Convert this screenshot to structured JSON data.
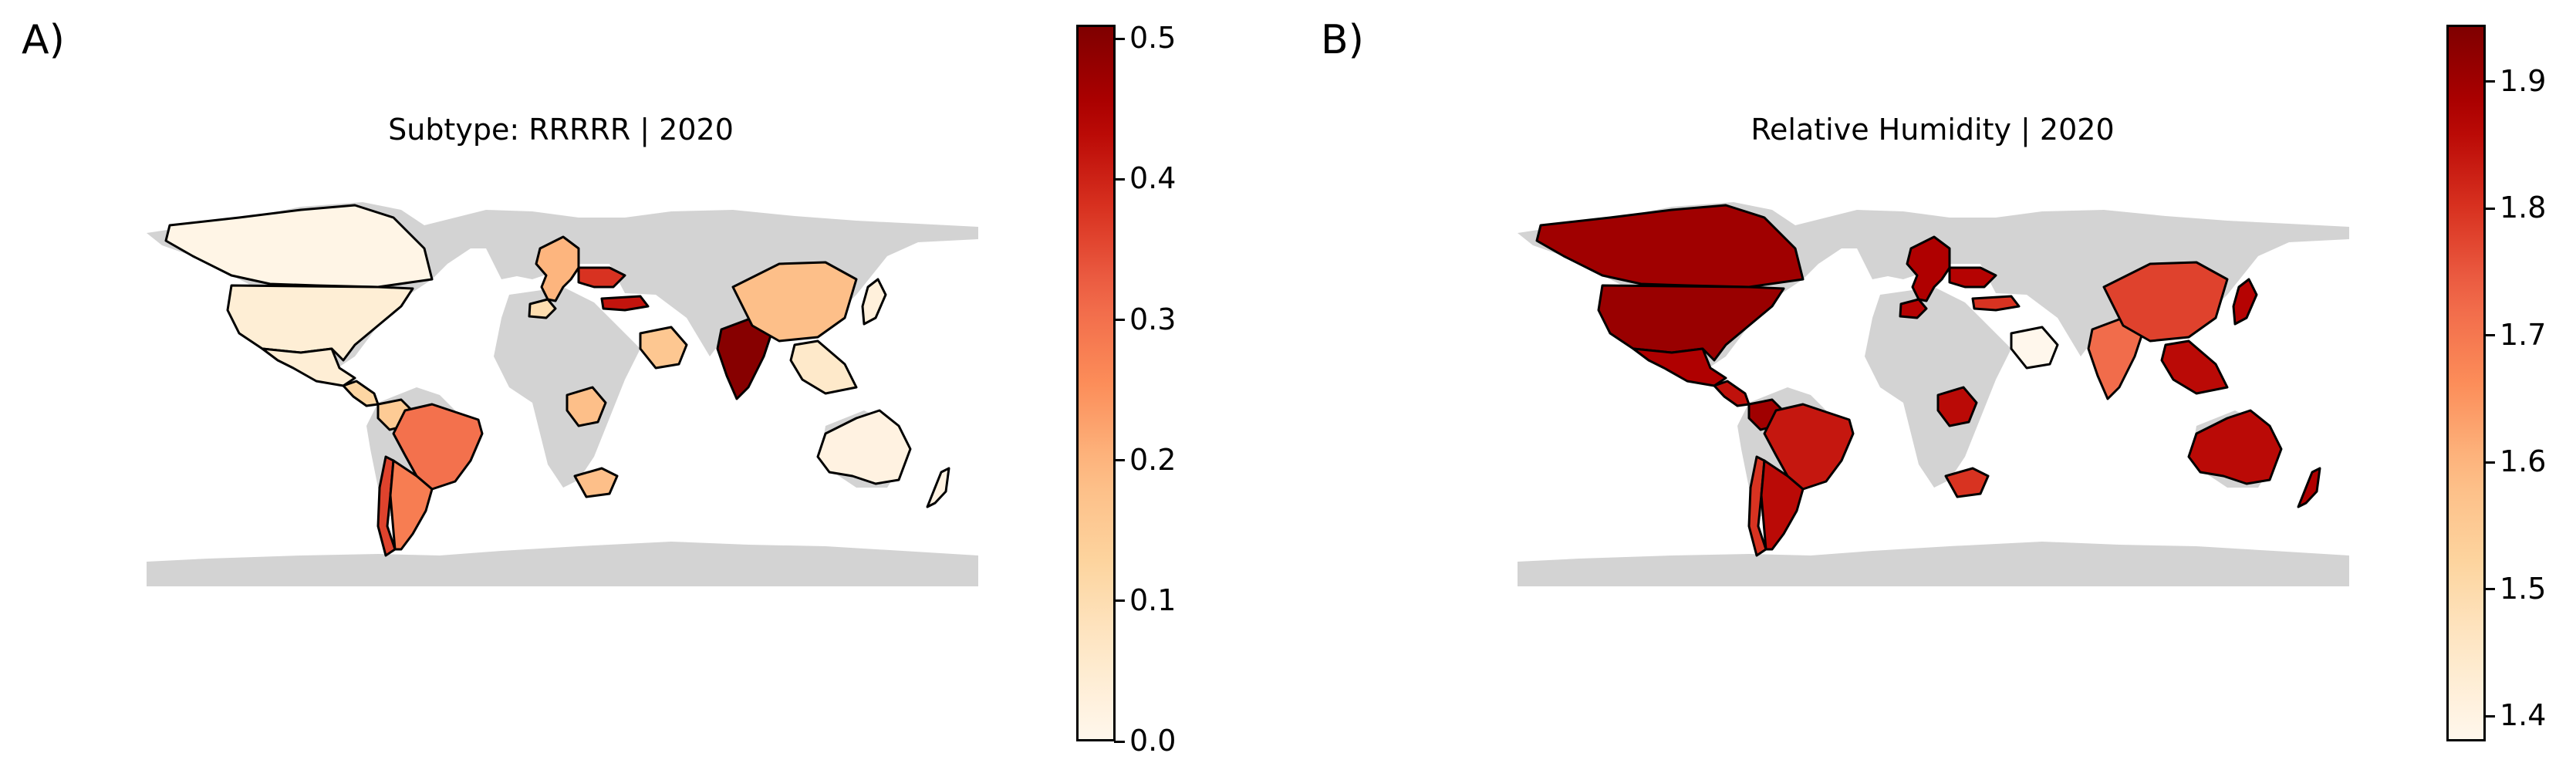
{
  "panels": [
    {
      "letter": "A)",
      "title": "Subtype: RRRRR | 2020",
      "colormap": "OrRd",
      "colorbar": {
        "min": 0.0,
        "max": 0.51,
        "ticks": [
          "0.0",
          "0.1",
          "0.2",
          "0.3",
          "0.4",
          "0.5"
        ]
      },
      "countries": [
        {
          "name": "Canada",
          "value": 0.01
        },
        {
          "name": "United States",
          "value": 0.04
        },
        {
          "name": "Mexico",
          "value": 0.04
        },
        {
          "name": "Central America",
          "value": 0.12
        },
        {
          "name": "Colombia",
          "value": 0.15
        },
        {
          "name": "Brazil",
          "value": 0.3
        },
        {
          "name": "Chile",
          "value": 0.36
        },
        {
          "name": "Argentina",
          "value": 0.28
        },
        {
          "name": "Spain",
          "value": 0.1
        },
        {
          "name": "Europe",
          "value": 0.2
        },
        {
          "name": "Ukraine",
          "value": 0.38
        },
        {
          "name": "Turkey",
          "value": 0.42
        },
        {
          "name": "Saudi Arabia",
          "value": 0.16
        },
        {
          "name": "India",
          "value": 0.5
        },
        {
          "name": "China",
          "value": 0.18
        },
        {
          "name": "Southeast Asia",
          "value": 0.06
        },
        {
          "name": "Japan",
          "value": 0.03
        },
        {
          "name": "DR Congo",
          "value": 0.18
        },
        {
          "name": "South Africa",
          "value": 0.18
        },
        {
          "name": "Australia",
          "value": 0.02
        },
        {
          "name": "New Zealand",
          "value": 0.02
        }
      ]
    },
    {
      "letter": "B)",
      "title": "Relative Humidity | 2020",
      "colormap": "OrRd",
      "colorbar": {
        "min": 1.38,
        "max": 1.945,
        "ticks": [
          "1.4",
          "1.5",
          "1.6",
          "1.7",
          "1.8",
          "1.9"
        ]
      },
      "countries": [
        {
          "name": "Canada",
          "value": 1.9
        },
        {
          "name": "United States",
          "value": 1.91
        },
        {
          "name": "Mexico",
          "value": 1.88
        },
        {
          "name": "Central America",
          "value": 1.85
        },
        {
          "name": "Colombia",
          "value": 1.9
        },
        {
          "name": "Brazil",
          "value": 1.84
        },
        {
          "name": "Chile",
          "value": 1.8
        },
        {
          "name": "Argentina",
          "value": 1.86
        },
        {
          "name": "Spain",
          "value": 1.87
        },
        {
          "name": "Europe",
          "value": 1.88
        },
        {
          "name": "Ukraine",
          "value": 1.87
        },
        {
          "name": "Turkey",
          "value": 1.8
        },
        {
          "name": "Saudi Arabia",
          "value": 1.38
        },
        {
          "name": "India",
          "value": 1.72
        },
        {
          "name": "China",
          "value": 1.78
        },
        {
          "name": "Southeast Asia",
          "value": 1.86
        },
        {
          "name": "Japan",
          "value": 1.87
        },
        {
          "name": "DR Congo",
          "value": 1.86
        },
        {
          "name": "South Africa",
          "value": 1.8
        },
        {
          "name": "Australia",
          "value": 1.86
        },
        {
          "name": "New Zealand",
          "value": 1.88
        }
      ]
    }
  ]
}
